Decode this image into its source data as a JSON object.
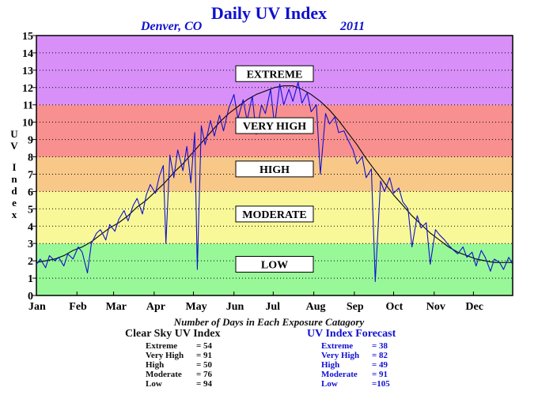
{
  "title": "Daily UV Index",
  "subtitle_location": "Denver, CO",
  "subtitle_year": "2011",
  "ylabel_chars": [
    "U",
    "V",
    "I",
    "n",
    "d",
    "e",
    "x"
  ],
  "caption": "Number of Days in Each Exposure Catagory",
  "clear_sky": {
    "title": "Clear Sky UV Index",
    "rows": [
      {
        "category": "Extreme",
        "value": "= 54"
      },
      {
        "category": "Very High",
        "value": "= 91"
      },
      {
        "category": "High",
        "value": "= 50"
      },
      {
        "category": "Moderate",
        "value": "= 76"
      },
      {
        "category": "Low",
        "value": "= 94"
      }
    ]
  },
  "forecast": {
    "title": "UV Index Forecast",
    "rows": [
      {
        "category": "Extreme",
        "value": "= 38"
      },
      {
        "category": "Very High",
        "value": "= 82"
      },
      {
        "category": "High",
        "value": "= 49"
      },
      {
        "category": "Moderate",
        "value": "= 91"
      },
      {
        "category": "Low",
        "value": "=105"
      }
    ]
  },
  "chart_data": {
    "type": "line",
    "title": "Daily UV Index",
    "ylabel": "UV Index",
    "xlabel": "",
    "ylim": [
      0,
      15
    ],
    "xlim": [
      1,
      365
    ],
    "yticks": [
      "0",
      "1",
      "2",
      "3",
      "4",
      "5",
      "6",
      "7",
      "8",
      "9",
      "10",
      "11",
      "12",
      "13",
      "14",
      "15"
    ],
    "months": [
      "Jan",
      "Feb",
      "Mar",
      "Apr",
      "May",
      "Jun",
      "Jul",
      "Aug",
      "Sep",
      "Oct",
      "Nov",
      "Dec"
    ],
    "month_start_days": [
      1,
      32,
      60,
      91,
      121,
      152,
      182,
      213,
      244,
      274,
      305,
      335
    ],
    "grid": true,
    "bands": [
      {
        "label": "LOW",
        "range": [
          0,
          3
        ],
        "color": "#98f898"
      },
      {
        "label": "MODERATE",
        "range": [
          3,
          6
        ],
        "color": "#f8f898"
      },
      {
        "label": "HIGH",
        "range": [
          6,
          8
        ],
        "color": "#f8c888"
      },
      {
        "label": "VERY HIGH",
        "range": [
          8,
          11
        ],
        "color": "#f89090"
      },
      {
        "label": "EXTREME",
        "range": [
          11,
          15
        ],
        "color": "#d890f8"
      }
    ],
    "band_label_values": [
      1.8,
      4.7,
      7.3,
      9.8,
      12.8
    ],
    "series": [
      {
        "color": "#111111",
        "x": [
          1,
          8,
          15,
          22,
          29,
          36,
          43,
          50,
          57,
          64,
          71,
          78,
          85,
          92,
          99,
          106,
          113,
          120,
          127,
          134,
          141,
          148,
          155,
          162,
          169,
          176,
          183,
          190,
          197,
          204,
          211,
          218,
          225,
          232,
          239,
          246,
          253,
          260,
          267,
          274,
          281,
          288,
          295,
          302,
          309,
          316,
          323,
          330,
          337,
          344,
          351,
          358,
          365
        ],
        "y": [
          1.9,
          2.0,
          2.1,
          2.3,
          2.6,
          2.8,
          3.1,
          3.5,
          3.9,
          4.2,
          4.6,
          5.1,
          5.5,
          6.0,
          6.5,
          7.1,
          7.6,
          8.2,
          8.8,
          9.4,
          10.0,
          10.5,
          10.9,
          11.3,
          11.6,
          11.8,
          12.0,
          12.1,
          12.1,
          11.9,
          11.6,
          11.2,
          10.7,
          10.1,
          9.4,
          8.7,
          7.9,
          7.2,
          6.5,
          5.8,
          5.2,
          4.6,
          4.1,
          3.6,
          3.2,
          2.8,
          2.5,
          2.3,
          2.1,
          2.0,
          1.9,
          1.9,
          1.9
        ]
      },
      {
        "color": "#1010d0",
        "x": [
          1,
          4,
          8,
          11,
          15,
          18,
          22,
          25,
          29,
          33,
          36,
          40,
          43,
          47,
          50,
          54,
          57,
          61,
          64,
          68,
          71,
          75,
          78,
          82,
          85,
          88,
          92,
          95,
          98,
          100,
          103,
          106,
          109,
          113,
          116,
          119,
          122,
          124,
          127,
          130,
          134,
          137,
          141,
          144,
          148,
          152,
          155,
          159,
          162,
          166,
          169,
          173,
          176,
          180,
          183,
          187,
          190,
          194,
          197,
          201,
          204,
          208,
          211,
          215,
          218,
          222,
          225,
          229,
          232,
          236,
          239,
          243,
          246,
          250,
          253,
          257,
          260,
          264,
          267,
          271,
          274,
          278,
          281,
          285,
          288,
          292,
          295,
          299,
          302,
          306,
          309,
          313,
          316,
          320,
          323,
          327,
          330,
          334,
          337,
          341,
          344,
          348,
          351,
          355,
          358,
          362,
          365
        ],
        "y": [
          1.8,
          2.1,
          1.6,
          2.3,
          2.0,
          2.2,
          1.7,
          2.4,
          2.1,
          2.8,
          2.5,
          1.3,
          3.0,
          3.6,
          3.8,
          3.2,
          4.1,
          3.7,
          4.4,
          4.9,
          4.3,
          5.2,
          5.6,
          4.7,
          5.8,
          6.4,
          5.9,
          6.9,
          7.5,
          3.0,
          8.1,
          6.8,
          8.4,
          7.2,
          8.6,
          6.5,
          9.4,
          1.5,
          9.8,
          8.7,
          10.1,
          9.2,
          10.4,
          9.5,
          10.8,
          11.6,
          10.2,
          11.3,
          10.1,
          11.5,
          9.3,
          11.0,
          10.5,
          11.9,
          9.8,
          12.2,
          11.0,
          11.9,
          11.2,
          12.3,
          11.1,
          11.7,
          10.6,
          11.0,
          7.0,
          10.5,
          9.9,
          10.3,
          9.4,
          9.5,
          9.0,
          8.4,
          7.6,
          8.0,
          6.8,
          7.3,
          0.8,
          6.6,
          6.0,
          6.8,
          5.9,
          6.2,
          5.4,
          5.0,
          2.8,
          4.6,
          3.9,
          4.2,
          1.8,
          3.8,
          3.5,
          3.2,
          2.9,
          2.6,
          2.4,
          2.8,
          2.2,
          2.5,
          1.7,
          2.6,
          2.2,
          1.4,
          2.1,
          1.9,
          1.5,
          2.2,
          1.8
        ]
      }
    ]
  }
}
